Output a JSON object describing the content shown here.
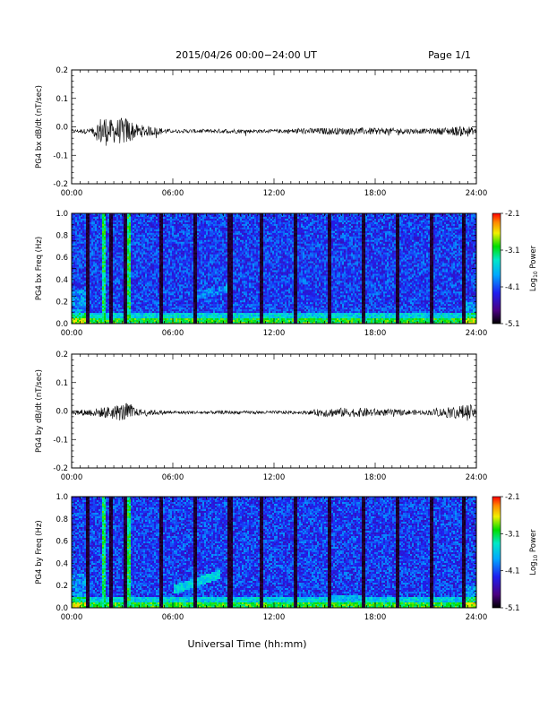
{
  "header": {
    "title": "2015/04/26  00:00−24:00 UT",
    "page_label": "Page 1/1"
  },
  "footer": {
    "xlabel": "Universal Time (hh:mm)"
  },
  "colorbar": {
    "label_main": "Log",
    "label_sub": "10",
    "label_tail": " Power",
    "ticks": [
      "-2.1",
      "-3.1",
      "-4.1",
      "-5.1"
    ],
    "tick_values": [
      -2.1,
      -3.1,
      -4.1,
      -5.1
    ],
    "range": [
      -5.1,
      -2.1
    ]
  },
  "chart_data": [
    {
      "id": "panel-bx-dbdt",
      "type": "line",
      "ylabel": "PG4 bx dB/dt (nT/sec)",
      "xlim": [
        0,
        24
      ],
      "ylim": [
        -0.2,
        0.2
      ],
      "x_ticks": [
        "00:00",
        "06:00",
        "12:00",
        "18:00",
        "24:00"
      ],
      "y_ticks": [
        "0.2",
        "0.1",
        "0.0",
        "-0.1",
        "-0.2"
      ],
      "y_tick_values": [
        0.2,
        0.1,
        0.0,
        -0.1,
        -0.2
      ],
      "baseline": -0.015,
      "x_hours": [
        0,
        1.2,
        1.9,
        2.2,
        3.3,
        3.8,
        6.0,
        9.5,
        12.0,
        13.5,
        15.5,
        17.5,
        18.5,
        21.0,
        23.5,
        24.0
      ],
      "envelope": [
        0.006,
        0.01,
        0.065,
        0.04,
        0.05,
        0.025,
        0.006,
        0.008,
        0.006,
        0.01,
        0.012,
        0.012,
        0.012,
        0.008,
        0.02,
        0.006
      ]
    },
    {
      "id": "panel-bx-spec",
      "type": "heatmap",
      "ylabel": "PG4 bx Freq (Hz)",
      "xlim": [
        0,
        24
      ],
      "ylim": [
        0,
        1.0
      ],
      "x_ticks": [
        "00:00",
        "06:00",
        "12:00",
        "18:00",
        "24:00"
      ],
      "y_ticks": [
        "1.0",
        "0.8",
        "0.6",
        "0.4",
        "0.2",
        "0.0"
      ],
      "y_tick_values": [
        1.0,
        0.8,
        0.6,
        0.4,
        0.2,
        0.0
      ],
      "gap_hours": [
        1.0,
        2.3,
        3.2,
        5.3,
        7.3,
        9.3,
        9.5,
        11.3,
        13.3,
        15.3,
        17.3,
        19.3,
        21.3,
        23.3
      ],
      "bright_bands_hours": [
        1.9,
        3.4
      ],
      "feature": "none"
    },
    {
      "id": "panel-by-dbdt",
      "type": "line",
      "ylabel": "PG4 by dB/dt (nT/sec)",
      "xlim": [
        0,
        24
      ],
      "ylim": [
        -0.2,
        0.2
      ],
      "x_ticks": [
        "00:00",
        "06:00",
        "12:00",
        "18:00",
        "24:00"
      ],
      "y_ticks": [
        "0.2",
        "0.1",
        "0.0",
        "-0.1",
        "-0.2"
      ],
      "y_tick_values": [
        0.2,
        0.1,
        0.0,
        -0.1,
        -0.2
      ],
      "baseline": -0.005,
      "x_hours": [
        0,
        1.5,
        3.4,
        3.9,
        6.0,
        9.5,
        12.0,
        14.0,
        15.0,
        17.5,
        18.5,
        21.0,
        23.6,
        24.0
      ],
      "envelope": [
        0.008,
        0.015,
        0.035,
        0.012,
        0.006,
        0.006,
        0.006,
        0.006,
        0.016,
        0.016,
        0.012,
        0.008,
        0.03,
        0.008
      ]
    },
    {
      "id": "panel-by-spec",
      "type": "heatmap",
      "ylabel": "PG4 by Freq (Hz)",
      "xlim": [
        0,
        24
      ],
      "ylim": [
        0,
        1.0
      ],
      "x_ticks": [
        "00:00",
        "06:00",
        "12:00",
        "18:00",
        "24:00"
      ],
      "y_ticks": [
        "1.0",
        "0.8",
        "0.6",
        "0.4",
        "0.2",
        "0.0"
      ],
      "y_tick_values": [
        1.0,
        0.8,
        0.6,
        0.4,
        0.2,
        0.0
      ],
      "gap_hours": [
        1.0,
        2.3,
        3.2,
        5.3,
        7.3,
        9.3,
        9.5,
        11.3,
        13.3,
        15.3,
        17.3,
        19.3,
        21.3,
        23.3
      ],
      "bright_bands_hours": [
        1.9,
        3.4
      ],
      "feature": "rising-tone"
    }
  ]
}
